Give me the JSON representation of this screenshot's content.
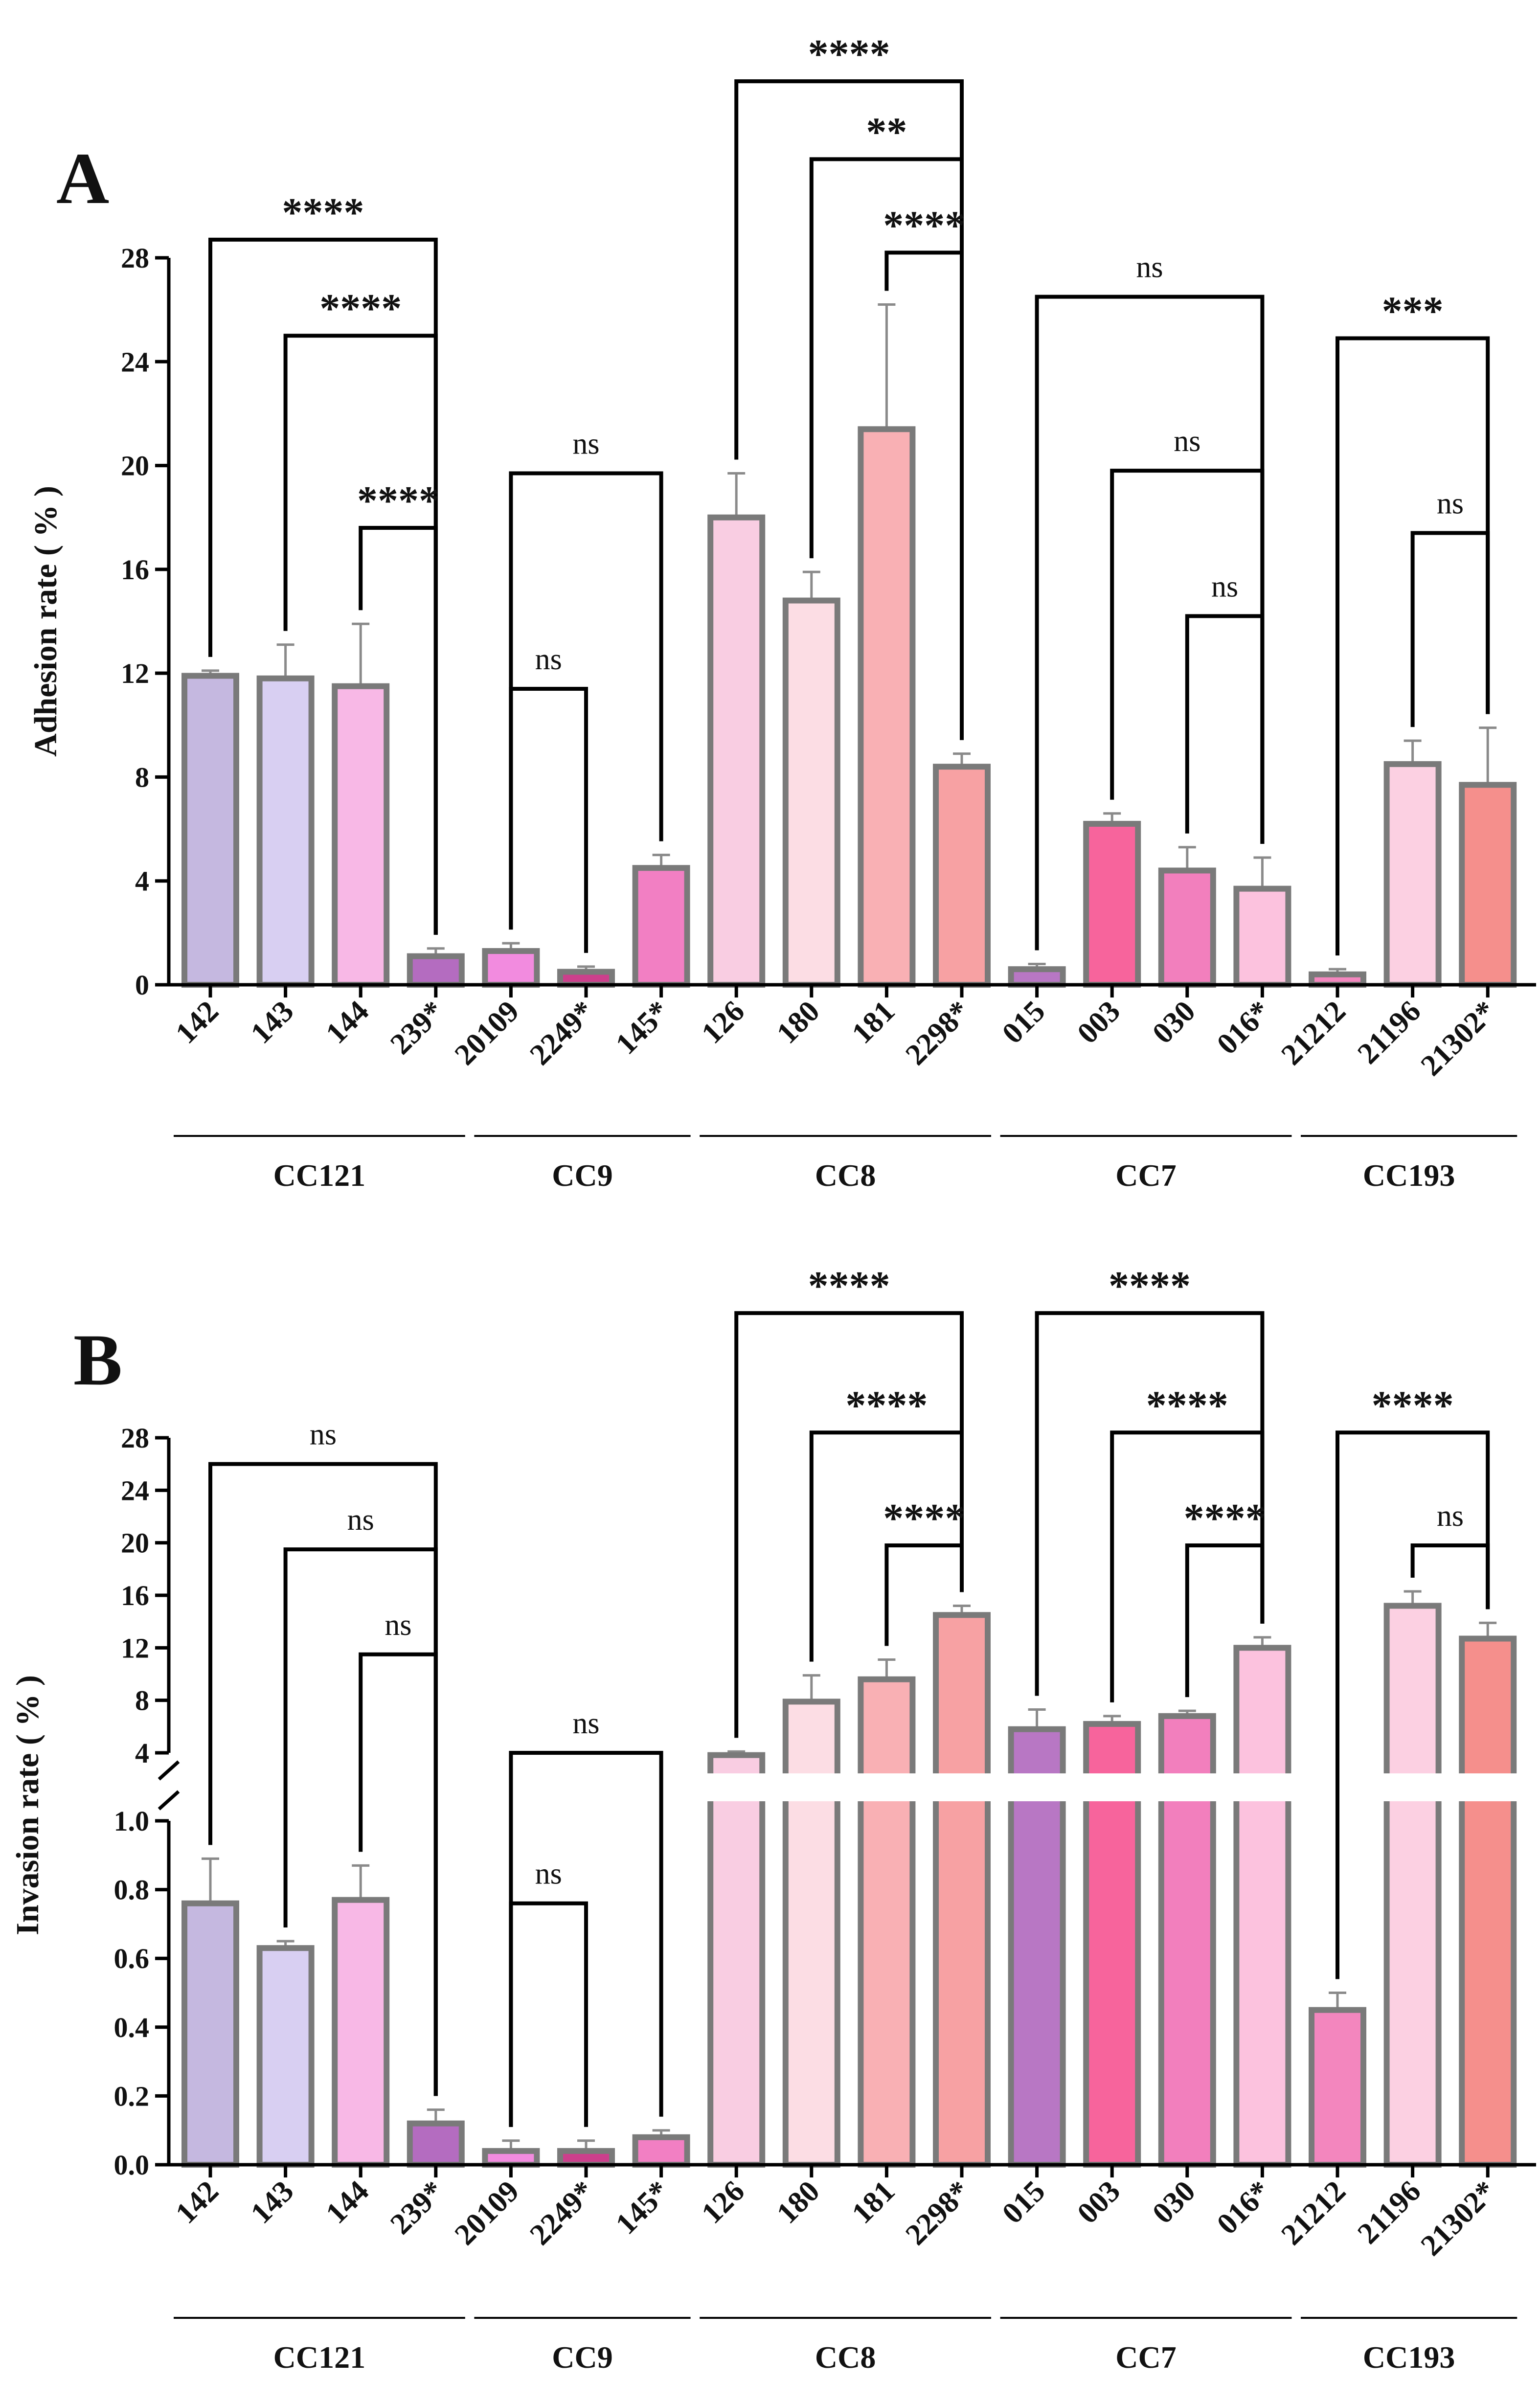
{
  "colors": {
    "142": "#c5b8e0",
    "143": "#d8cff2",
    "144": "#f8b8e6",
    "239*": "#b46cc0",
    "20109": "#f28bdf",
    "2249*": "#cc3f8c",
    "145*": "#f27fc3",
    "126": "#f9cde2",
    "180": "#fcdde4",
    "181": "#f9b0b4",
    "2298*": "#f7a1a3",
    "015": "#b877c4",
    "003": "#f7649c",
    "030": "#f27fbd",
    "016*": "#fcc2de",
    "21212": "#f386be",
    "21196": "#fcd0e2",
    "21302*": "#f58f8c",
    "bar_edge": "#7a7a7a",
    "axis": "#000000"
  },
  "chart_data": [
    {
      "type": "bar",
      "panel": "A",
      "ylabel": "Adhesion rate ( % )",
      "ylim": [
        0,
        28
      ],
      "yticks": [
        "0",
        "4",
        "8",
        "12",
        "16",
        "20",
        "24",
        "28"
      ],
      "grid": false,
      "categories": [
        "142",
        "143",
        "144",
        "239*",
        "20109",
        "2249*",
        "145*",
        "126",
        "180",
        "181",
        "2298*",
        "015",
        "003",
        "030",
        "016*",
        "21212",
        "21196",
        "21302*"
      ],
      "values": [
        11.9,
        11.8,
        11.5,
        1.1,
        1.3,
        0.5,
        4.5,
        18.0,
        14.8,
        21.4,
        8.4,
        0.6,
        6.2,
        4.4,
        3.7,
        0.4,
        8.5,
        7.7
      ],
      "errors": [
        0.2,
        1.3,
        2.4,
        0.3,
        0.3,
        0.2,
        0.5,
        1.7,
        1.1,
        4.8,
        0.5,
        0.2,
        0.4,
        0.9,
        1.2,
        0.2,
        0.9,
        2.2
      ],
      "groups": [
        {
          "name": "CC121",
          "start": 0,
          "end": 3
        },
        {
          "name": "CC9",
          "start": 4,
          "end": 6
        },
        {
          "name": "CC8",
          "start": 7,
          "end": 10
        },
        {
          "name": "CC7",
          "start": 11,
          "end": 14
        },
        {
          "name": "CC193",
          "start": 15,
          "end": 17
        }
      ],
      "comparisons": [
        {
          "from": "142",
          "to": "239*",
          "label": "****",
          "y": 28.7
        },
        {
          "from": "143",
          "to": "239*",
          "label": "****",
          "y": 25.0
        },
        {
          "from": "144",
          "to": "239*",
          "label": "****",
          "y": 17.6
        },
        {
          "from": "20109",
          "to": "145*",
          "label": "ns",
          "y": 19.7
        },
        {
          "from": "20109",
          "to": "2249*",
          "label": "ns",
          "y": 11.4
        },
        {
          "from": "126",
          "to": "2298*",
          "label": "****",
          "y": 34.8
        },
        {
          "from": "180",
          "to": "2298*",
          "label": "**",
          "y": 31.8
        },
        {
          "from": "181",
          "to": "2298*",
          "label": "****",
          "y": 28.2
        },
        {
          "from": "015",
          "to": "016*",
          "label": "ns",
          "y": 26.5
        },
        {
          "from": "003",
          "to": "016*",
          "label": "ns",
          "y": 19.8
        },
        {
          "from": "030",
          "to": "016*",
          "label": "ns",
          "y": 14.2
        },
        {
          "from": "21212",
          "to": "21302*",
          "label": "***",
          "y": 24.9
        },
        {
          "from": "21196",
          "to": "21302*",
          "label": "ns",
          "y": 17.4
        }
      ]
    },
    {
      "type": "bar",
      "panel": "B",
      "ylabel": "Invasion rate ( % )",
      "broken_axis": {
        "lower_range": [
          0,
          1.0
        ],
        "upper_range": [
          4,
          28
        ],
        "lower_ticks": [
          "0.0",
          "0.2",
          "0.4",
          "0.6",
          "0.8",
          "1.0"
        ],
        "upper_ticks": [
          "4",
          "8",
          "12",
          "16",
          "20",
          "24",
          "28"
        ]
      },
      "grid": false,
      "categories": [
        "142",
        "143",
        "144",
        "239*",
        "20109",
        "2249*",
        "145*",
        "126",
        "180",
        "181",
        "2298*",
        "015",
        "003",
        "030",
        "016*",
        "21212",
        "21196",
        "21302*"
      ],
      "values": [
        0.76,
        0.63,
        0.77,
        0.12,
        0.04,
        0.04,
        0.08,
        3.9,
        7.9,
        9.6,
        14.5,
        5.8,
        6.2,
        6.8,
        12.0,
        0.45,
        15.2,
        12.7
      ],
      "errors": [
        0.13,
        0.02,
        0.1,
        0.04,
        0.03,
        0.03,
        0.02,
        0.2,
        2.0,
        1.5,
        0.7,
        1.5,
        0.6,
        0.4,
        0.8,
        0.05,
        1.1,
        1.2
      ],
      "groups": [
        {
          "name": "CC121",
          "start": 0,
          "end": 3
        },
        {
          "name": "CC9",
          "start": 4,
          "end": 6
        },
        {
          "name": "CC8",
          "start": 7,
          "end": 10
        },
        {
          "name": "CC7",
          "start": 11,
          "end": 14
        },
        {
          "name": "CC193",
          "start": 15,
          "end": 17
        }
      ],
      "comparisons": [
        {
          "from": "142",
          "to": "239*",
          "label": "ns",
          "y": 26.0
        },
        {
          "from": "143",
          "to": "239*",
          "label": "ns",
          "y": 19.5
        },
        {
          "from": "144",
          "to": "239*",
          "label": "ns",
          "y": 11.5
        },
        {
          "from": "20109",
          "to": "145*",
          "label": "ns",
          "y": 4.0
        },
        {
          "from": "20109",
          "to": "2249*",
          "label": "ns",
          "y": 0.76
        },
        {
          "from": "126",
          "to": "2298*",
          "label": "****",
          "y": 37.5
        },
        {
          "from": "180",
          "to": "2298*",
          "label": "****",
          "y": 28.4
        },
        {
          "from": "181",
          "to": "2298*",
          "label": "****",
          "y": 19.8
        },
        {
          "from": "015",
          "to": "016*",
          "label": "****",
          "y": 37.5
        },
        {
          "from": "003",
          "to": "016*",
          "label": "****",
          "y": 28.4
        },
        {
          "from": "030",
          "to": "016*",
          "label": "****",
          "y": 19.8
        },
        {
          "from": "21212",
          "to": "21302*",
          "label": "****",
          "y": 28.4
        },
        {
          "from": "21196",
          "to": "21302*",
          "label": "ns",
          "y": 19.8
        }
      ]
    }
  ]
}
